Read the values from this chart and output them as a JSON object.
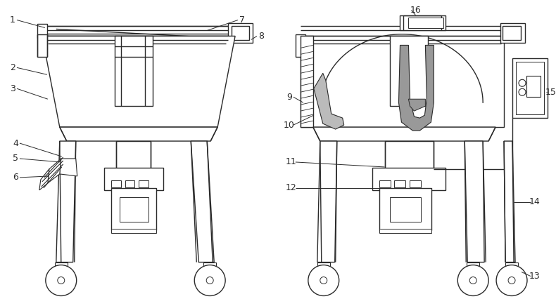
{
  "bg_color": "#ffffff",
  "line_color": "#2a2a2a",
  "gray_fill": "#999999",
  "light_gray": "#bbbbbb",
  "lw": 1.0,
  "fig_w": 7.9,
  "fig_h": 4.36
}
